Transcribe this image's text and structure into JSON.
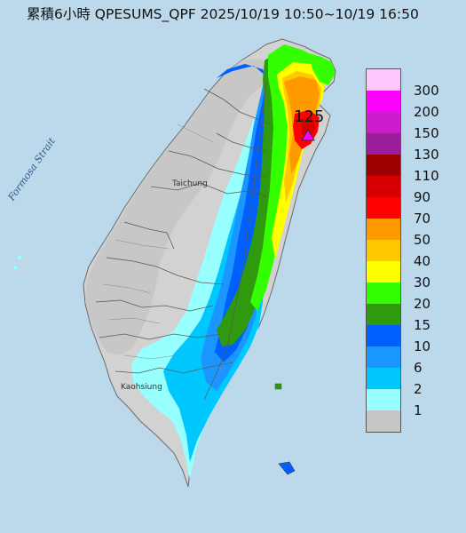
{
  "title": "累積6小時 QPESUMS_QPF 2025/10/19 10:50~10/19 16:50",
  "strait_label": "Formosa Strait",
  "city_taichung": "Taichung",
  "city_kaohsiung": "Kaohsiung",
  "peak": {
    "value": "125"
  },
  "legend": {
    "labels": [
      "300",
      "200",
      "150",
      "130",
      "110",
      "90",
      "70",
      "50",
      "40",
      "30",
      "20",
      "15",
      "10",
      "6",
      "2",
      "1"
    ],
    "colors": [
      "#fdc9fd",
      "#fe00fe",
      "#cc1ccc",
      "#9c1c9c",
      "#9c0000",
      "#d60000",
      "#ff0000",
      "#ff9900",
      "#ffc800",
      "#ffff00",
      "#33ff00",
      "#2f9a0e",
      "#0060ff",
      "#1c96ff",
      "#00c8ff",
      "#98ffff",
      "#c6c6c6"
    ]
  },
  "colors": {
    "sea": "#bcd9ec",
    "land": "#d2d2d2",
    "rain_grey": "#c6c6c6"
  }
}
